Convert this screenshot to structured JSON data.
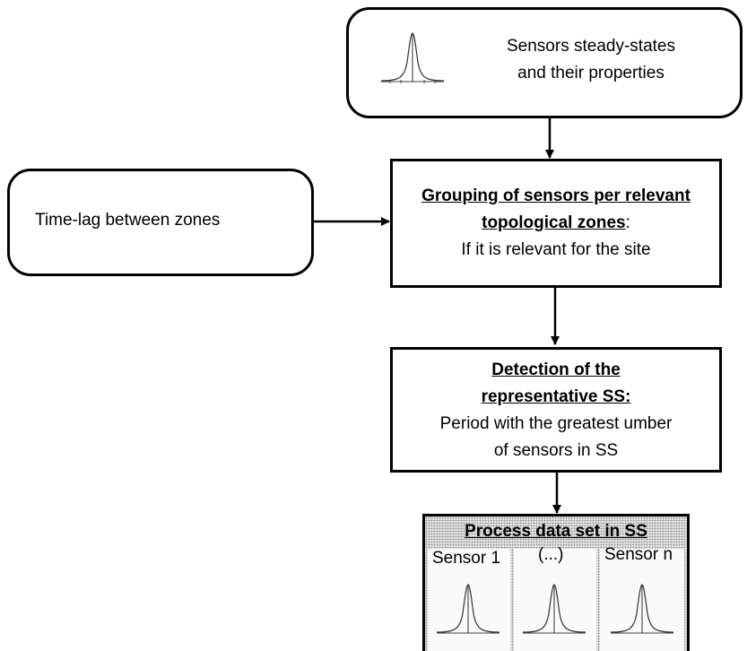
{
  "top_box": {
    "line1": "Sensors steady-states",
    "line2": "and their properties",
    "icon": "gaussian-curve-icon"
  },
  "left_box": {
    "text": "Time-lag between zones"
  },
  "grouping_box": {
    "title_line1": "Grouping of sensors per relevant",
    "title_line2": "topological zones",
    "colon": ":",
    "subtitle": "If it is relevant for the site"
  },
  "detection_box": {
    "title_line1": "Detection of the",
    "title_line2": "representative SS:",
    "desc_line1": "Period with the greatest umber",
    "desc_line2": "of sensors in SS"
  },
  "process_box": {
    "title": "Process data set in SS",
    "sensors": [
      {
        "label": "Sensor 1",
        "icon": "gaussian-curve-icon"
      },
      {
        "label": "(...)",
        "icon": "gaussian-curve-icon"
      },
      {
        "label": "Sensor n",
        "icon": "gaussian-curve-icon"
      }
    ]
  }
}
